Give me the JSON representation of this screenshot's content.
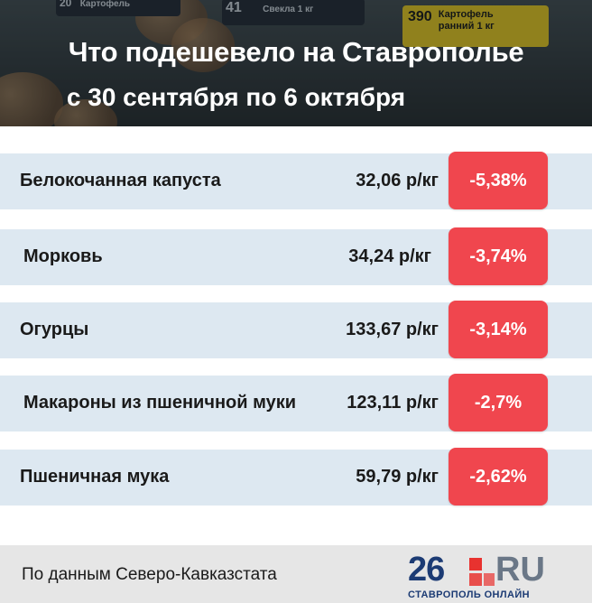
{
  "header": {
    "title": "Что подешевело на Ставрополье",
    "subtitle": "с 30 сентября по 6 октября",
    "photo_tags": {
      "tag1_code": "20",
      "tag1_text": "Картофель",
      "tag2_code": "41",
      "tag2_text": "Свекла 1 кг",
      "tag3_code": "390",
      "tag3_text": "Картофель ранний 1 кг"
    }
  },
  "rows": [
    {
      "name": "Белокочанная капуста",
      "price": "32,06 р/кг",
      "change": "-5,38%"
    },
    {
      "name": "Морковь",
      "price": "34,24 р/кг",
      "change": "-3,74%"
    },
    {
      "name": "Огурцы",
      "price": "133,67 р/кг",
      "change": "-3,14%"
    },
    {
      "name": "Макароны из пшеничной муки",
      "price": "123,11 р/кг",
      "change": "-2,7%"
    },
    {
      "name": "Пшеничная мука",
      "price": "59,79 р/кг",
      "change": "-2,62%"
    }
  ],
  "footer": {
    "source": "По данным Северо-Кавказстата",
    "logo_number": "26",
    "logo_suffix": "RU",
    "logo_city": "СТАВРОПОЛЬ ОНЛАЙН"
  },
  "colors": {
    "badge": "#f0464e",
    "row_background": "#dde8f1",
    "logo_blue": "#1c3b74",
    "logo_red": "#e8322f"
  }
}
